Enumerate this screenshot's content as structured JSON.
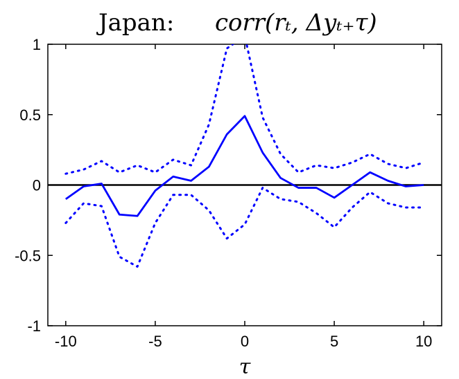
{
  "chart_data": {
    "type": "line",
    "title_prefix": "Japan:",
    "title_expr": "corr(rₜ, Δyₜ₊τ)",
    "xlabel": "τ",
    "ylabel": "",
    "xlim": [
      -11,
      11
    ],
    "ylim": [
      -1,
      1
    ],
    "xticks": [
      -10,
      -5,
      0,
      5,
      10
    ],
    "xtick_labels": [
      "-10",
      "-5",
      "0",
      "5",
      "10"
    ],
    "yticks": [
      -1,
      -0.5,
      0,
      0.5,
      1
    ],
    "ytick_labels": [
      "-1",
      "-0.5",
      "0",
      "0.5",
      "1"
    ],
    "grid": false,
    "zero_line": 0,
    "x": [
      -10,
      -9,
      -8,
      -7,
      -6,
      -5,
      -4,
      -3,
      -2,
      -1,
      0,
      1,
      2,
      3,
      4,
      5,
      6,
      7,
      8,
      9,
      10
    ],
    "series": [
      {
        "style": "solid",
        "color": "#0000ff",
        "values": [
          -0.1,
          -0.01,
          0.01,
          -0.21,
          -0.22,
          -0.04,
          0.06,
          0.03,
          0.13,
          0.36,
          0.49,
          0.23,
          0.05,
          -0.02,
          -0.02,
          -0.09,
          0.0,
          0.09,
          0.03,
          -0.01,
          0.0
        ]
      },
      {
        "style": "dotted",
        "color": "#0000ff",
        "values": [
          0.08,
          0.11,
          0.17,
          0.09,
          0.14,
          0.09,
          0.18,
          0.14,
          0.43,
          0.97,
          1.06,
          0.48,
          0.22,
          0.09,
          0.14,
          0.12,
          0.16,
          0.22,
          0.15,
          0.12,
          0.16
        ]
      },
      {
        "style": "dotted",
        "color": "#0000ff",
        "values": [
          -0.27,
          -0.13,
          -0.15,
          -0.51,
          -0.58,
          -0.27,
          -0.07,
          -0.07,
          -0.18,
          -0.38,
          -0.28,
          -0.02,
          -0.1,
          -0.12,
          -0.2,
          -0.3,
          -0.16,
          -0.05,
          -0.13,
          -0.16,
          -0.16
        ]
      }
    ]
  }
}
